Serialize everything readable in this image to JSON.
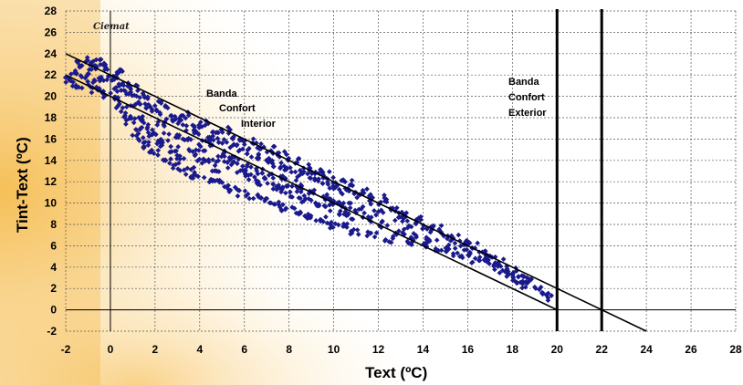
{
  "chart_data": {
    "type": "scatter",
    "logo_text": "Ciemat",
    "xlabel": "Text (ºC)",
    "ylabel": "Tint-Text (ºC)",
    "xlim": [
      -2,
      28
    ],
    "ylim": [
      -2,
      28
    ],
    "x_ticks": [
      -2,
      0,
      2,
      4,
      6,
      8,
      10,
      12,
      14,
      16,
      18,
      20,
      22,
      24,
      26,
      28
    ],
    "y_ticks": [
      -2,
      0,
      2,
      4,
      6,
      8,
      10,
      12,
      14,
      16,
      18,
      20,
      22,
      24,
      26,
      28
    ],
    "grid": true,
    "marker_color": "#1a1a8c",
    "lines": [
      {
        "x": [
          -2,
          20
        ],
        "y": [
          22,
          0
        ]
      },
      {
        "x": [
          -2,
          24
        ],
        "y": [
          24,
          -2
        ]
      }
    ],
    "vlines": [
      20,
      22
    ],
    "annotations": [
      {
        "lines": [
          "Banda",
          "Confort",
          "Interior"
        ]
      },
      {
        "lines": [
          "Banda",
          "Confort",
          "Exterior"
        ]
      }
    ],
    "points": [
      [
        -1.8,
        21.5
      ],
      [
        -1.6,
        22.4
      ],
      [
        -1.5,
        21.0
      ],
      [
        -1.3,
        23.0
      ],
      [
        -1.1,
        22.0
      ],
      [
        -1.0,
        23.4
      ],
      [
        -0.9,
        21.2
      ],
      [
        -0.7,
        22.6
      ],
      [
        -0.6,
        20.6
      ],
      [
        -0.5,
        23.2
      ],
      [
        -0.3,
        21.8
      ],
      [
        -0.2,
        22.8
      ],
      [
        -0.1,
        20.2
      ],
      [
        0.1,
        21.6
      ],
      [
        0.2,
        19.6
      ],
      [
        0.3,
        22.3
      ],
      [
        0.4,
        20.8
      ],
      [
        0.5,
        19.0
      ],
      [
        0.6,
        21.2
      ],
      [
        0.7,
        18.4
      ],
      [
        0.8,
        20.4
      ],
      [
        0.9,
        17.6
      ],
      [
        1.0,
        20.9
      ],
      [
        1.1,
        19.2
      ],
      [
        1.2,
        16.6
      ],
      [
        1.3,
        20.2
      ],
      [
        1.4,
        18.0
      ],
      [
        1.5,
        16.0
      ],
      [
        1.5,
        19.6
      ],
      [
        1.6,
        17.2
      ],
      [
        1.7,
        15.4
      ],
      [
        1.8,
        19.0
      ],
      [
        1.9,
        16.6
      ],
      [
        2.0,
        14.8
      ],
      [
        2.1,
        18.6
      ],
      [
        2.2,
        17.4
      ],
      [
        2.3,
        15.6
      ],
      [
        2.4,
        19.2
      ],
      [
        2.5,
        16.2
      ],
      [
        2.6,
        14.0
      ],
      [
        2.7,
        18.0
      ],
      [
        2.8,
        15.0
      ],
      [
        2.9,
        13.4
      ],
      [
        3.0,
        17.6
      ],
      [
        3.1,
        16.4
      ],
      [
        3.2,
        14.4
      ],
      [
        3.3,
        18.2
      ],
      [
        3.4,
        15.8
      ],
      [
        3.5,
        13.0
      ],
      [
        3.6,
        17.0
      ],
      [
        3.7,
        14.8
      ],
      [
        3.8,
        12.6
      ],
      [
        3.9,
        16.8
      ],
      [
        4.0,
        15.2
      ],
      [
        4.1,
        13.8
      ],
      [
        4.2,
        17.4
      ],
      [
        4.3,
        16.0
      ],
      [
        4.4,
        12.2
      ],
      [
        4.5,
        15.6
      ],
      [
        4.6,
        14.2
      ],
      [
        4.7,
        16.6
      ],
      [
        4.8,
        13.2
      ],
      [
        4.9,
        11.8
      ],
      [
        5.0,
        15.8
      ],
      [
        5.1,
        14.6
      ],
      [
        5.2,
        16.8
      ],
      [
        5.3,
        13.6
      ],
      [
        5.4,
        11.4
      ],
      [
        5.5,
        15.2
      ],
      [
        5.6,
        14.0
      ],
      [
        5.7,
        16.2
      ],
      [
        5.8,
        12.8
      ],
      [
        5.9,
        11.0
      ],
      [
        6.0,
        14.8
      ],
      [
        6.1,
        13.4
      ],
      [
        6.2,
        15.8
      ],
      [
        6.3,
        12.4
      ],
      [
        6.4,
        10.6
      ],
      [
        6.5,
        14.4
      ],
      [
        6.6,
        13.0
      ],
      [
        6.7,
        15.4
      ],
      [
        6.8,
        12.0
      ],
      [
        6.9,
        10.2
      ],
      [
        7.0,
        14.0
      ],
      [
        7.1,
        12.6
      ],
      [
        7.2,
        15.0
      ],
      [
        7.3,
        11.6
      ],
      [
        7.4,
        9.8
      ],
      [
        7.5,
        13.6
      ],
      [
        7.6,
        12.2
      ],
      [
        7.7,
        14.6
      ],
      [
        7.8,
        11.2
      ],
      [
        7.9,
        9.6
      ],
      [
        8.0,
        13.2
      ],
      [
        8.1,
        11.8
      ],
      [
        8.2,
        14.0
      ],
      [
        8.3,
        10.8
      ],
      [
        8.4,
        9.2
      ],
      [
        8.5,
        12.8
      ],
      [
        8.6,
        11.4
      ],
      [
        8.7,
        13.4
      ],
      [
        8.8,
        10.4
      ],
      [
        8.9,
        8.8
      ],
      [
        9.0,
        12.4
      ],
      [
        9.1,
        11.0
      ],
      [
        9.2,
        13.0
      ],
      [
        9.3,
        10.0
      ],
      [
        9.4,
        8.4
      ],
      [
        9.5,
        12.0
      ],
      [
        9.6,
        10.6
      ],
      [
        9.7,
        12.6
      ],
      [
        9.8,
        9.6
      ],
      [
        9.9,
        8.0
      ],
      [
        10.0,
        11.6
      ],
      [
        10.1,
        10.2
      ],
      [
        10.2,
        12.2
      ],
      [
        10.3,
        9.2
      ],
      [
        10.4,
        7.8
      ],
      [
        10.5,
        11.2
      ],
      [
        10.6,
        9.8
      ],
      [
        10.7,
        11.8
      ],
      [
        10.8,
        8.8
      ],
      [
        10.9,
        7.4
      ],
      [
        11.0,
        10.8
      ],
      [
        11.2,
        9.4
      ],
      [
        11.4,
        11.0
      ],
      [
        11.5,
        8.4
      ],
      [
        11.7,
        7.0
      ],
      [
        11.8,
        10.2
      ],
      [
        12.0,
        9.0
      ],
      [
        12.2,
        10.4
      ],
      [
        12.3,
        8.0
      ],
      [
        12.5,
        6.6
      ],
      [
        12.7,
        9.4
      ],
      [
        12.9,
        8.4
      ],
      [
        13.0,
        7.4
      ],
      [
        13.2,
        9.0
      ],
      [
        13.4,
        6.4
      ],
      [
        13.5,
        8.0
      ],
      [
        13.7,
        7.0
      ],
      [
        13.9,
        8.4
      ],
      [
        14.0,
        6.0
      ],
      [
        14.2,
        7.6
      ],
      [
        14.4,
        6.6
      ],
      [
        14.6,
        7.8
      ],
      [
        14.8,
        5.6
      ],
      [
        15.0,
        7.0
      ],
      [
        15.2,
        6.0
      ],
      [
        15.4,
        6.8
      ],
      [
        15.6,
        5.2
      ],
      [
        15.8,
        6.2
      ],
      [
        16.0,
        5.4
      ],
      [
        16.2,
        6.0
      ],
      [
        16.4,
        4.6
      ],
      [
        16.6,
        5.4
      ],
      [
        16.8,
        4.8
      ],
      [
        17.0,
        5.0
      ],
      [
        17.2,
        4.0
      ],
      [
        17.4,
        4.4
      ],
      [
        17.6,
        3.8
      ],
      [
        17.8,
        3.4
      ],
      [
        18.0,
        3.6
      ],
      [
        18.2,
        2.8
      ],
      [
        18.4,
        3.0
      ],
      [
        18.6,
        2.4
      ],
      [
        18.8,
        2.6
      ],
      [
        19.2,
        1.8
      ],
      [
        19.6,
        1.2
      ]
    ]
  }
}
